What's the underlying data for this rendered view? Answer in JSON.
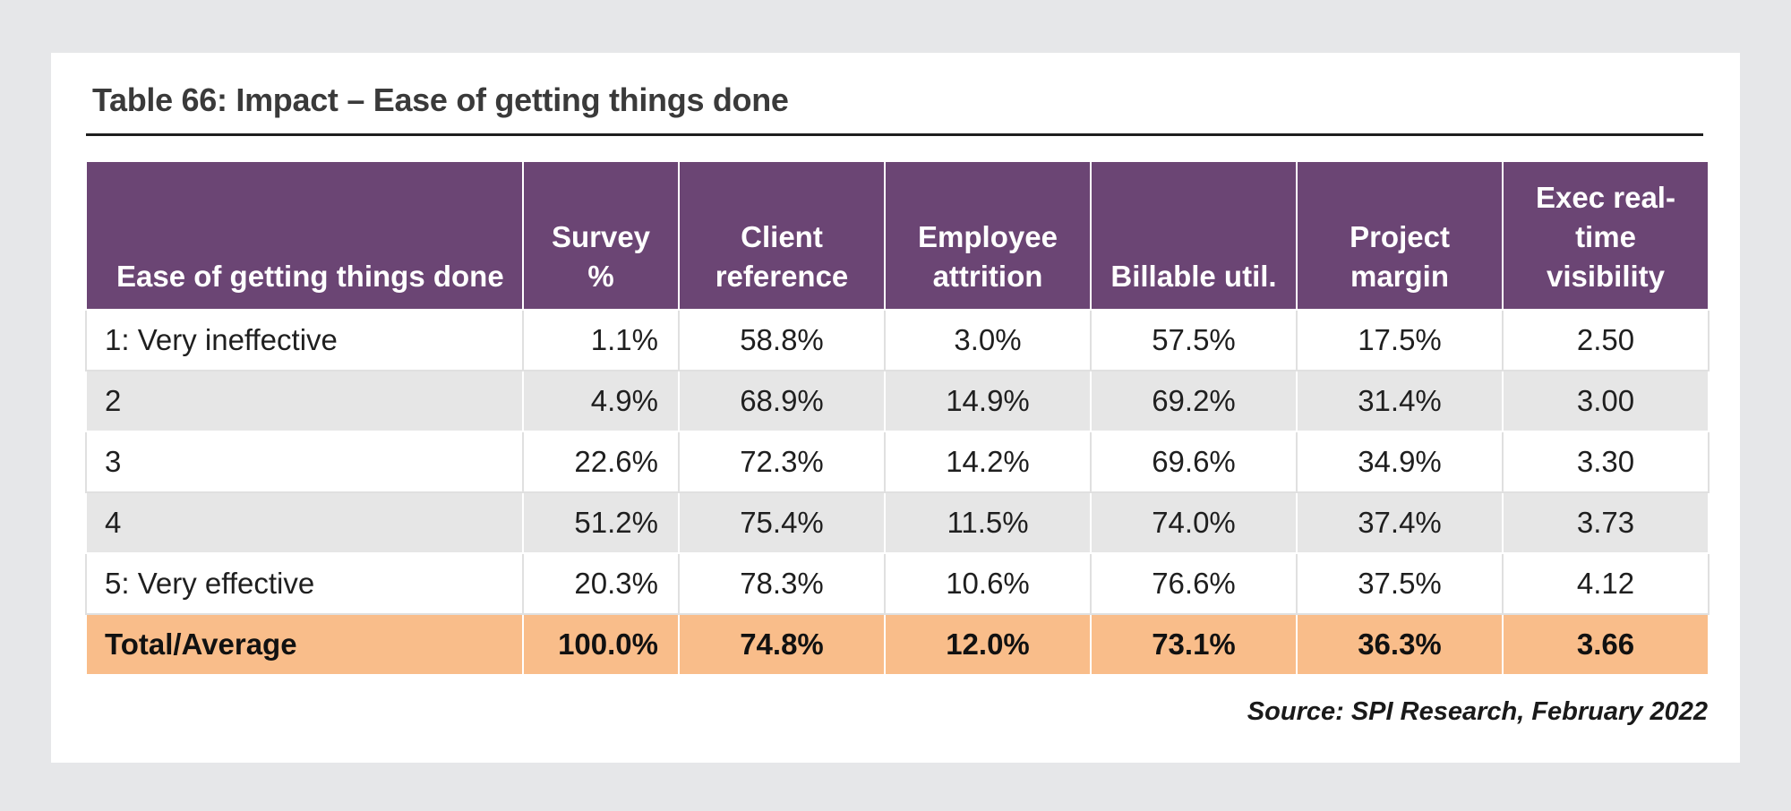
{
  "table": {
    "title": "Table 66:  Impact – Ease of getting things done",
    "columns": {
      "ease": "Ease of getting things done",
      "survey": [
        "Survey",
        "%"
      ],
      "client": [
        "Client",
        "reference"
      ],
      "attrition": [
        "Employee",
        "attrition"
      ],
      "billable": "Billable util.",
      "margin": [
        "Project",
        "margin"
      ],
      "exec": [
        "Exec real-",
        "time",
        "visibility"
      ]
    },
    "rows": [
      {
        "label": "1: Very ineffective",
        "survey": "1.1%",
        "client": "58.8%",
        "attrition": "3.0%",
        "billable": "57.5%",
        "margin": "17.5%",
        "exec": "2.50"
      },
      {
        "label": "2",
        "survey": "4.9%",
        "client": "68.9%",
        "attrition": "14.9%",
        "billable": "69.2%",
        "margin": "31.4%",
        "exec": "3.00"
      },
      {
        "label": "3",
        "survey": "22.6%",
        "client": "72.3%",
        "attrition": "14.2%",
        "billable": "69.6%",
        "margin": "34.9%",
        "exec": "3.30"
      },
      {
        "label": "4",
        "survey": "51.2%",
        "client": "75.4%",
        "attrition": "11.5%",
        "billable": "74.0%",
        "margin": "37.4%",
        "exec": "3.73"
      },
      {
        "label": "5: Very effective",
        "survey": "20.3%",
        "client": "78.3%",
        "attrition": "10.6%",
        "billable": "76.6%",
        "margin": "37.5%",
        "exec": "4.12"
      }
    ],
    "total": {
      "label": "Total/Average",
      "survey": "100.0%",
      "client": "74.8%",
      "attrition": "12.0%",
      "billable": "73.1%",
      "margin": "36.3%",
      "exec": "3.66"
    },
    "source": "Source: SPI Research, February 2022"
  },
  "colors": {
    "header_bg": "#6b4574",
    "stripe": "#e6e6e6",
    "total_bg": "#f9bd8a",
    "page_bg": "#e6e7e9"
  }
}
